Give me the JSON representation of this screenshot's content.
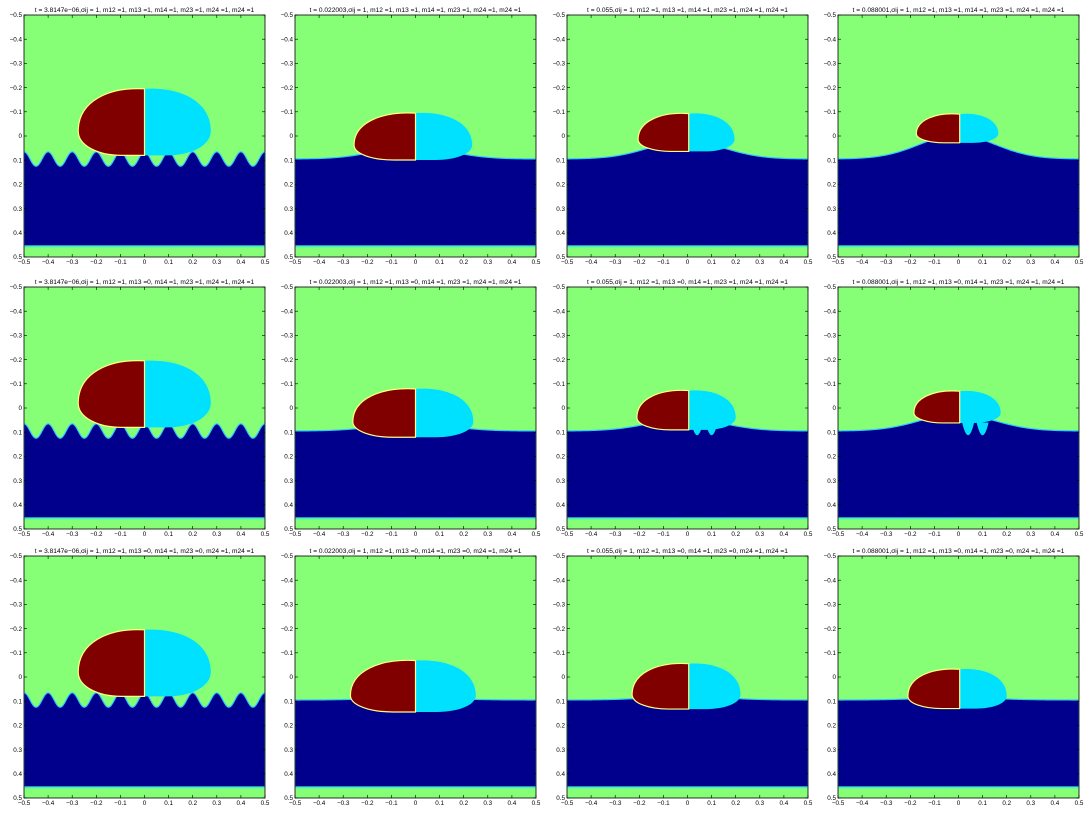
{
  "colors": {
    "background_phase": "#86ff77",
    "bottom_phase": "#00008d",
    "left_drop": "#800000",
    "right_drop": "#00e0ff",
    "interface_line": "#ffff80",
    "bottom_strip": "#48f0c8",
    "interface_glow": "#30c8ff"
  },
  "chart_data": {
    "type": "heatmap",
    "layout": {
      "rows": 3,
      "cols": 4
    },
    "xlim": [
      -0.5,
      0.5
    ],
    "ylim": [
      -0.5,
      0.5
    ],
    "y_reversed": true,
    "x_ticks": [
      "-0.5",
      "-0.4",
      "-0.3",
      "-0.2",
      "-0.1",
      "0",
      "0.1",
      "0.2",
      "0.3",
      "0.4",
      "0.5"
    ],
    "y_ticks": [
      "-0.5",
      "-0.4",
      "-0.3",
      "-0.2",
      "-0.1",
      "0",
      "0.1",
      "0.2",
      "0.3",
      "0.4",
      "0.5"
    ],
    "panels": [
      {
        "title": "t = 3.8147e−06,σij = 1,  m12 =1, m13 =1, m14 =1, m23 =1,  m24 =1, m24 =1",
        "t": 3.8147e-06,
        "stage": 0,
        "drops": {
          "cx1": -0.1,
          "cx2": 0.1,
          "R": 0.175,
          "top_flat": false,
          "legs_left": true,
          "legs_right": false
        },
        "wave_amplitude": 0.03,
        "bump_height": 0.0
      },
      {
        "title": "t = 0.022003,σij = 1,  m12 =1, m13 =1, m14 =1, m23 =1,  m24 =1, m24 =1",
        "t": 0.022003,
        "stage": 1,
        "drops": {
          "cx1": -0.1,
          "cx2": 0.08,
          "R": 0.155,
          "top_flat": true,
          "legs_left": false,
          "legs_right": false
        },
        "wave_amplitude": 0.0,
        "bump_height": 0.05
      },
      {
        "title": "t = 0.055,σij = 1,  m12 =1, m13 =1, m14 =1, m23 =1,  m24 =1, m24 =1",
        "t": 0.055,
        "stage": 2,
        "drops": {
          "cx1": -0.08,
          "cx2": 0.07,
          "R": 0.125,
          "top_flat": true,
          "legs_left": false,
          "legs_right": false
        },
        "wave_amplitude": 0.0,
        "bump_height": 0.075
      },
      {
        "title": "t = 0.088001,σij = 1,  m12 =1, m13 =1, m14 =1, m23 =1,  m24 =1, m24 =1",
        "t": 0.088001,
        "stage": 3,
        "drops": {
          "cx1": -0.08,
          "cx2": 0.07,
          "R": 0.095,
          "top_flat": true,
          "legs_left": false,
          "legs_right": false
        },
        "wave_amplitude": 0.0,
        "bump_height": 0.1
      },
      {
        "title": "t = 3.8147e−06,σij = 1,  m12 =1, m13 =0, m14 =1, m23 =1,  m24 =1, m24 =1",
        "t": 3.8147e-06,
        "stage": 0,
        "drops": {
          "cx1": -0.1,
          "cx2": 0.1,
          "R": 0.175,
          "top_flat": false,
          "legs_left": true,
          "legs_right": false
        },
        "wave_amplitude": 0.03,
        "bump_height": 0.0
      },
      {
        "title": "t = 0.022003,σij = 1,  m12 =1, m13 =0, m14 =1, m23 =1,  m24 =1, m24 =1",
        "t": 0.022003,
        "stage": 1,
        "drops": {
          "cx1": -0.1,
          "cx2": 0.08,
          "R": 0.16,
          "top_flat": true,
          "legs_left": false,
          "legs_right": true
        },
        "wave_amplitude": 0.0,
        "bump_height": 0.03
      },
      {
        "title": "t = 0.055,σij = 1,  m12 =1, m13 =0, m14 =1, m23 =1,  m24 =1, m24 =1",
        "t": 0.055,
        "stage": 2,
        "drops": {
          "cx1": -0.08,
          "cx2": 0.07,
          "R": 0.13,
          "top_flat": true,
          "legs_left": false,
          "legs_right": true
        },
        "wave_amplitude": 0.0,
        "bump_height": 0.05
      },
      {
        "title": "t = 0.088001,σij = 1,  m12 =1, m13 =0, m14 =1, m23 =1,  m24 =1, m24 =1",
        "t": 0.088001,
        "stage": 3,
        "drops": {
          "cx1": -0.08,
          "cx2": 0.07,
          "R": 0.105,
          "top_flat": true,
          "legs_left": false,
          "legs_right": true
        },
        "wave_amplitude": 0.0,
        "bump_height": 0.07
      },
      {
        "title": "t = 3.8147e−06,σij = 1,  m12 =1, m13 =0, m14 =1, m23 =0,  m24 =1, m24 =1",
        "t": 3.8147e-06,
        "stage": 0,
        "drops": {
          "cx1": -0.1,
          "cx2": 0.1,
          "R": 0.175,
          "top_flat": false,
          "legs_left": true,
          "legs_right": false
        },
        "wave_amplitude": 0.03,
        "bump_height": 0.0
      },
      {
        "title": "t = 0.022003,σij = 1,  m12 =1, m13 =0, m14 =1, m23 =0,  m24 =1, m24 =1",
        "t": 0.022003,
        "stage": 1,
        "drops": {
          "cx1": -0.1,
          "cx2": 0.08,
          "R": 0.17,
          "top_flat": true,
          "legs_left": true,
          "legs_right": true
        },
        "wave_amplitude": 0.0,
        "bump_height": 0.01
      },
      {
        "title": "t = 0.055,σij = 1,  m12 =1, m13 =0, m14 =1, m23 =0,  m24 =1, m24 =1",
        "t": 0.055,
        "stage": 2,
        "drops": {
          "cx1": -0.08,
          "cx2": 0.07,
          "R": 0.15,
          "top_flat": true,
          "legs_left": true,
          "legs_right": true
        },
        "wave_amplitude": 0.0,
        "bump_height": 0.015
      },
      {
        "title": "t = 0.088001,σij = 1,  m12 =1, m13 =0, m14 =1, m23 =0,  m24 =1, m24 =1",
        "t": 0.088001,
        "stage": 3,
        "drops": {
          "cx1": -0.08,
          "cx2": 0.07,
          "R": 0.13,
          "top_flat": true,
          "legs_left": true,
          "legs_right": true
        },
        "wave_amplitude": 0.0,
        "bump_height": 0.01
      }
    ]
  }
}
